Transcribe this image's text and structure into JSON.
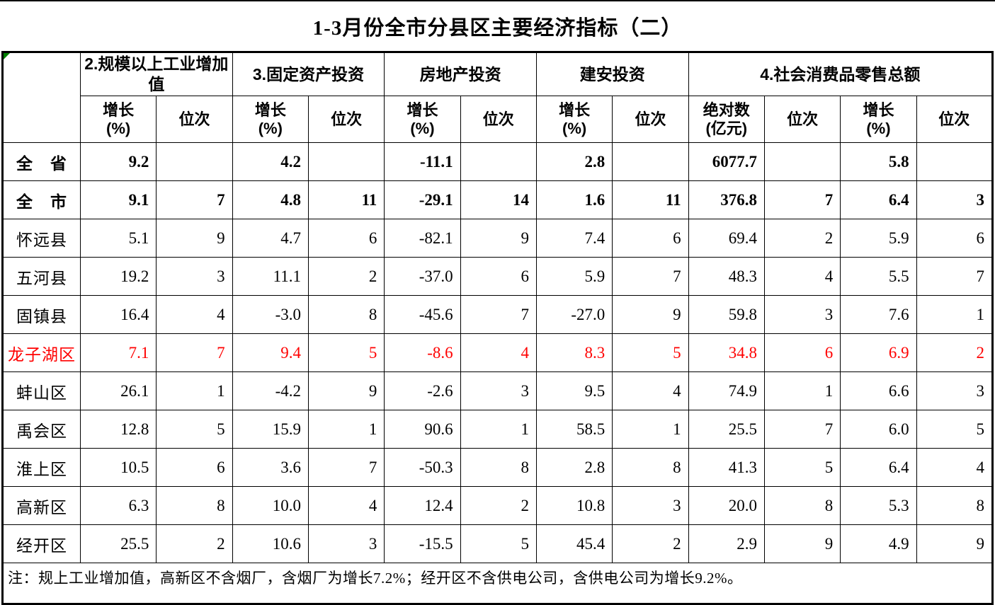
{
  "title": "1-3月份全市分县区主要经济指标（二）",
  "colors": {
    "highlight_row": "#ff0000",
    "corner_triangle": "#008000",
    "border": "#000000"
  },
  "table": {
    "groups": [
      {
        "label": "2.规模以上工业增加值",
        "span": 2
      },
      {
        "label": "3.固定资产投资",
        "span": 2
      },
      {
        "label": "房地产投资",
        "span": 2
      },
      {
        "label": "建安投资",
        "span": 2
      },
      {
        "label": "4.社会消费品零售总额",
        "span": 4
      }
    ],
    "subheaders": [
      "增长\n(%)",
      "位次",
      "增长\n(%)",
      "位次",
      "增长\n(%)",
      "位次",
      "增长\n(%)",
      "位次",
      "绝对数\n(亿元)",
      "位次",
      "增长\n(%)",
      "位次"
    ],
    "rows": [
      {
        "name": "全　省",
        "bold": true,
        "highlighted": false,
        "values": [
          "9.2",
          "",
          "4.2",
          "",
          "-11.1",
          "",
          "2.8",
          "",
          "6077.7",
          "",
          "5.8",
          ""
        ]
      },
      {
        "name": "全　市",
        "bold": true,
        "highlighted": false,
        "values": [
          "9.1",
          "7",
          "4.8",
          "11",
          "-29.1",
          "14",
          "1.6",
          "11",
          "376.8",
          "7",
          "6.4",
          "3"
        ]
      },
      {
        "name": "怀远县",
        "bold": false,
        "highlighted": false,
        "values": [
          "5.1",
          "9",
          "4.7",
          "6",
          "-82.1",
          "9",
          "7.4",
          "6",
          "69.4",
          "2",
          "5.9",
          "6"
        ]
      },
      {
        "name": "五河县",
        "bold": false,
        "highlighted": false,
        "values": [
          "19.2",
          "3",
          "11.1",
          "2",
          "-37.0",
          "6",
          "5.9",
          "7",
          "48.3",
          "4",
          "5.5",
          "7"
        ]
      },
      {
        "name": "固镇县",
        "bold": false,
        "highlighted": false,
        "values": [
          "16.4",
          "4",
          "-3.0",
          "8",
          "-45.6",
          "7",
          "-27.0",
          "9",
          "59.8",
          "3",
          "7.6",
          "1"
        ]
      },
      {
        "name": "龙子湖区",
        "bold": false,
        "highlighted": true,
        "values": [
          "7.1",
          "7",
          "9.4",
          "5",
          "-8.6",
          "4",
          "8.3",
          "5",
          "34.8",
          "6",
          "6.9",
          "2"
        ]
      },
      {
        "name": "蚌山区",
        "bold": false,
        "highlighted": false,
        "values": [
          "26.1",
          "1",
          "-4.2",
          "9",
          "-2.6",
          "3",
          "9.5",
          "4",
          "74.9",
          "1",
          "6.6",
          "3"
        ]
      },
      {
        "name": "禹会区",
        "bold": false,
        "highlighted": false,
        "values": [
          "12.8",
          "5",
          "15.9",
          "1",
          "90.6",
          "1",
          "58.5",
          "1",
          "25.5",
          "7",
          "6.0",
          "5"
        ]
      },
      {
        "name": "淮上区",
        "bold": false,
        "highlighted": false,
        "values": [
          "10.5",
          "6",
          "3.6",
          "7",
          "-50.3",
          "8",
          "2.8",
          "8",
          "41.3",
          "5",
          "6.4",
          "4"
        ]
      },
      {
        "name": "高新区",
        "bold": false,
        "highlighted": false,
        "values": [
          "6.3",
          "8",
          "10.0",
          "4",
          "12.4",
          "2",
          "10.8",
          "3",
          "20.0",
          "8",
          "5.3",
          "8"
        ]
      },
      {
        "name": "经开区",
        "bold": false,
        "highlighted": false,
        "values": [
          "25.5",
          "2",
          "10.6",
          "3",
          "-15.5",
          "5",
          "45.4",
          "2",
          "2.9",
          "9",
          "4.9",
          "9"
        ]
      }
    ],
    "note": "注：规上工业增加值，高新区不含烟厂，含烟厂为增长7.2%；经开区不含供电公司，含供电公司为增长9.2%。"
  }
}
